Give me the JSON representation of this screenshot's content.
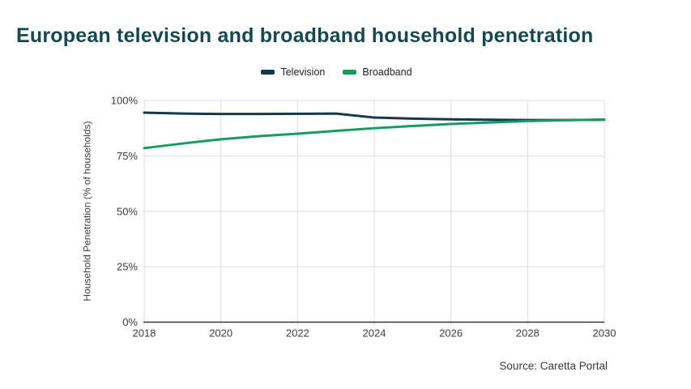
{
  "title": "European television and broadband household penetration",
  "source_note": "Source: Caretta Portal",
  "colors": {
    "title": "#164852",
    "axis_text": "#3d3d3d",
    "grid": "#dcdcdc",
    "axis_line": "#333333"
  },
  "chart_data": {
    "type": "line",
    "title": "European television and broadband household penetration",
    "xlabel": "",
    "ylabel": "Household Penetration (% of households)",
    "x": [
      2018,
      2019,
      2020,
      2021,
      2022,
      2023,
      2024,
      2025,
      2026,
      2027,
      2028,
      2029,
      2030
    ],
    "series": [
      {
        "name": "Television",
        "color": "#16384a",
        "values": [
          94.5,
          94.1,
          93.9,
          93.9,
          94.0,
          94.1,
          92.3,
          91.8,
          91.5,
          91.3,
          91.2,
          91.2,
          91.3
        ]
      },
      {
        "name": "Broadband",
        "color": "#159c63",
        "values": [
          78.5,
          80.6,
          82.5,
          83.9,
          85.0,
          86.3,
          87.5,
          88.5,
          89.4,
          90.1,
          90.7,
          91.1,
          91.4
        ]
      }
    ],
    "xlim": [
      2018,
      2030
    ],
    "ylim": [
      0,
      100
    ],
    "xticks": [
      2018,
      2020,
      2022,
      2024,
      2026,
      2028,
      2030
    ],
    "yticks": [
      0,
      25,
      50,
      75,
      100
    ],
    "ytick_labels": [
      "0%",
      "25%",
      "50%",
      "75%",
      "100%"
    ],
    "grid": true,
    "legend_position": "top-center"
  }
}
